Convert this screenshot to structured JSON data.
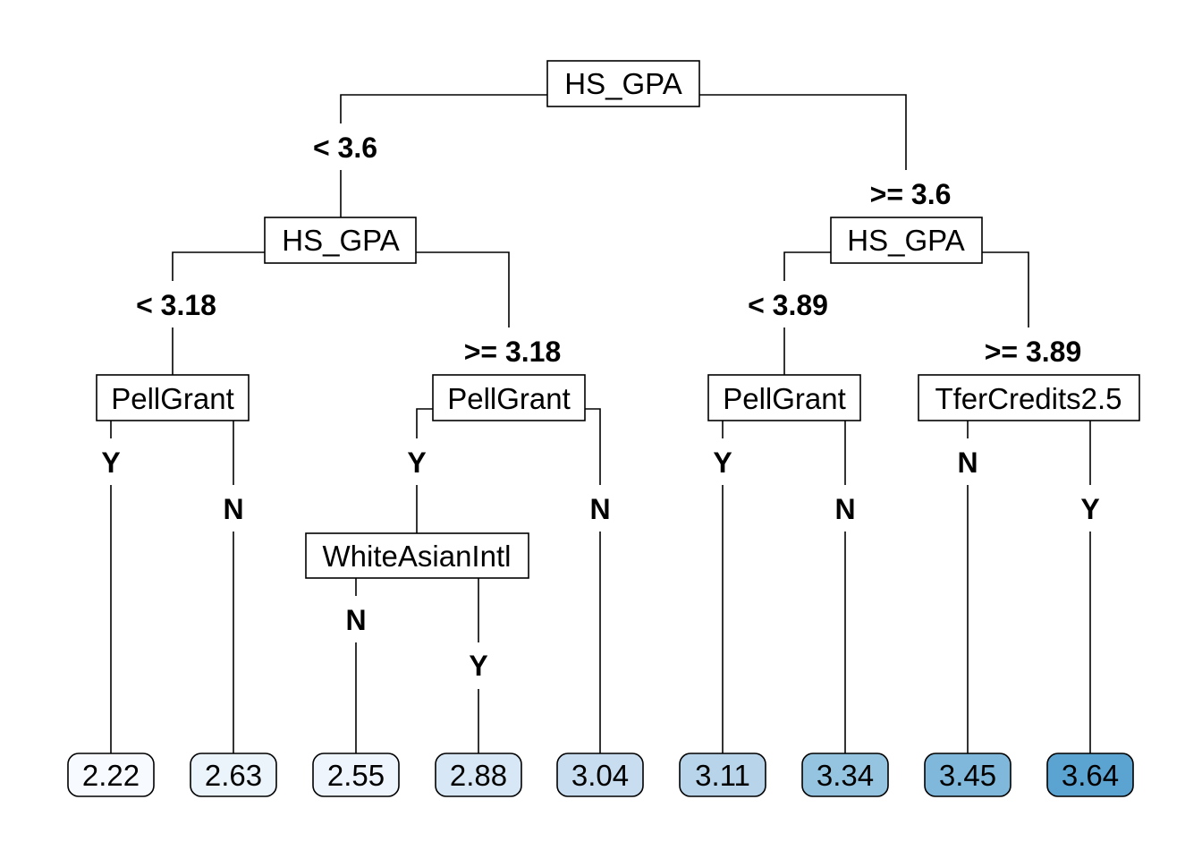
{
  "nodes": {
    "root": {
      "label": "HS_GPA"
    },
    "n_left": {
      "label": "HS_GPA"
    },
    "n_right": {
      "label": "HS_GPA"
    },
    "n_ll": {
      "label": "PellGrant"
    },
    "n_lr": {
      "label": "PellGrant"
    },
    "n_rl": {
      "label": "PellGrant"
    },
    "n_rr": {
      "label": "TferCredits2.5"
    },
    "n_lry": {
      "label": "WhiteAsianIntl"
    }
  },
  "edges": {
    "root_left": "< 3.6",
    "root_right": ">= 3.6",
    "left_left": "< 3.18",
    "left_right": ">= 3.18",
    "right_left": "< 3.89",
    "right_right": ">= 3.89",
    "ll_left": "Y",
    "ll_right": "N",
    "lr_left": "Y",
    "lr_right": "N",
    "rl_left": "Y",
    "rl_right": "N",
    "rr_left": "N",
    "rr_right": "Y",
    "lry_left": "N",
    "lry_right": "Y"
  },
  "leaves": [
    {
      "value": "2.22",
      "color": "#f7fbff"
    },
    {
      "value": "2.63",
      "color": "#ebf3fb"
    },
    {
      "value": "2.55",
      "color": "#eef5fc"
    },
    {
      "value": "2.88",
      "color": "#d8e7f5"
    },
    {
      "value": "3.04",
      "color": "#c9ddf0"
    },
    {
      "value": "3.11",
      "color": "#b7d4ea"
    },
    {
      "value": "3.34",
      "color": "#94c4df"
    },
    {
      "value": "3.45",
      "color": "#7fb8da"
    },
    {
      "value": "3.64",
      "color": "#5ba3d0"
    }
  ]
}
